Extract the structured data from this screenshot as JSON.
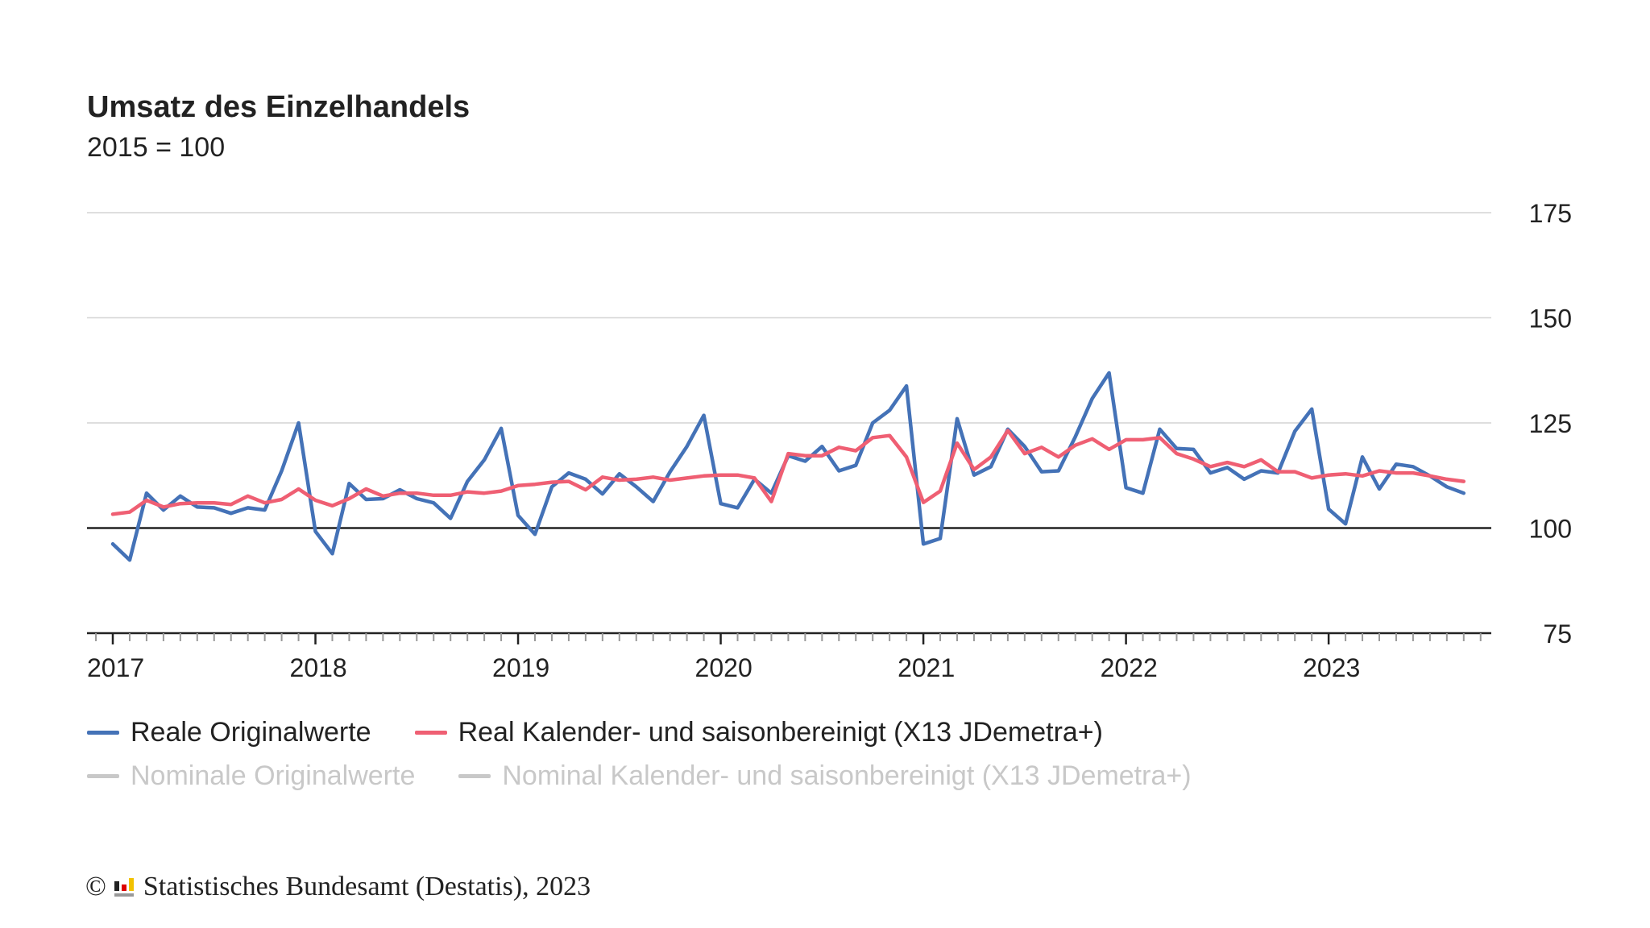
{
  "chart_data": {
    "type": "line",
    "title": "Umsatz des Einzelhandels",
    "subtitle": "2015 = 100",
    "x_start": "2017-01",
    "x_frequency": "monthly",
    "x_tick_labels": [
      "2017",
      "2018",
      "2019",
      "2020",
      "2021",
      "2022",
      "2023"
    ],
    "y_tick_labels": [
      "75",
      "100",
      "125",
      "150",
      "175"
    ],
    "ylim": [
      75,
      175
    ],
    "reference_line": 100,
    "grid": true,
    "y_axis_side": "right",
    "legend_position": "bottom",
    "series": [
      {
        "name": "Reale Originalwerte",
        "color": "#4472b7",
        "active": true,
        "values": [
          96.2,
          92.4,
          108.3,
          104.3,
          107.6,
          105.0,
          104.8,
          103.5,
          104.8,
          104.3,
          113.6,
          125.0,
          99.2,
          93.9,
          110.6,
          106.8,
          107.0,
          109.1,
          107.0,
          106.0,
          102.3,
          111.1,
          116.2,
          123.7,
          103.0,
          98.5,
          109.8,
          113.1,
          111.6,
          108.1,
          112.9,
          109.8,
          106.3,
          113.4,
          119.4,
          126.8,
          105.8,
          104.8,
          111.6,
          108.3,
          117.2,
          115.9,
          119.4,
          113.6,
          114.9,
          125.0,
          128.0,
          133.8,
          96.2,
          97.5,
          126.0,
          112.6,
          114.6,
          123.5,
          119.4,
          113.4,
          113.6,
          121.7,
          130.8,
          136.9,
          109.6,
          108.3,
          123.5,
          118.9,
          118.7,
          113.1,
          114.4,
          111.6,
          113.6,
          113.1,
          123.0,
          128.3,
          104.5,
          101.0,
          116.9,
          109.3,
          115.2,
          114.6,
          112.4,
          109.8,
          108.3
        ]
      },
      {
        "name": "Real Kalender- und saisonbereinigt (X13 JDemetra+)",
        "color": "#ef5f73",
        "active": true,
        "values": [
          103.3,
          103.8,
          106.6,
          105.0,
          105.8,
          106.0,
          106.0,
          105.6,
          107.6,
          106.0,
          106.8,
          109.3,
          106.6,
          105.3,
          107.0,
          109.3,
          107.6,
          108.3,
          108.3,
          107.8,
          107.8,
          108.6,
          108.3,
          108.8,
          110.1,
          110.4,
          110.9,
          111.1,
          109.1,
          112.1,
          111.4,
          111.6,
          112.1,
          111.4,
          111.9,
          112.4,
          112.6,
          112.6,
          111.9,
          106.3,
          117.7,
          117.2,
          117.2,
          119.2,
          118.4,
          121.5,
          122.0,
          116.9,
          106.1,
          108.8,
          120.2,
          113.9,
          116.9,
          123.2,
          117.7,
          119.2,
          116.9,
          119.7,
          121.2,
          118.7,
          121.0,
          121.0,
          121.5,
          117.7,
          116.4,
          114.6,
          115.6,
          114.6,
          116.2,
          113.4,
          113.4,
          111.9,
          112.6,
          112.9,
          112.4,
          113.6,
          113.1,
          113.1,
          112.4,
          111.6,
          111.1
        ]
      },
      {
        "name": "Nominale Originalwerte",
        "color": "#c8c8c8",
        "active": false,
        "values": []
      },
      {
        "name": "Nominal Kalender- und saisonbereinigt (X13 JDemetra+)",
        "color": "#c8c8c8",
        "active": false,
        "values": []
      }
    ]
  },
  "footer": {
    "text": "Statistisches Bundesamt (Destatis), 2023",
    "copyright": "©"
  }
}
